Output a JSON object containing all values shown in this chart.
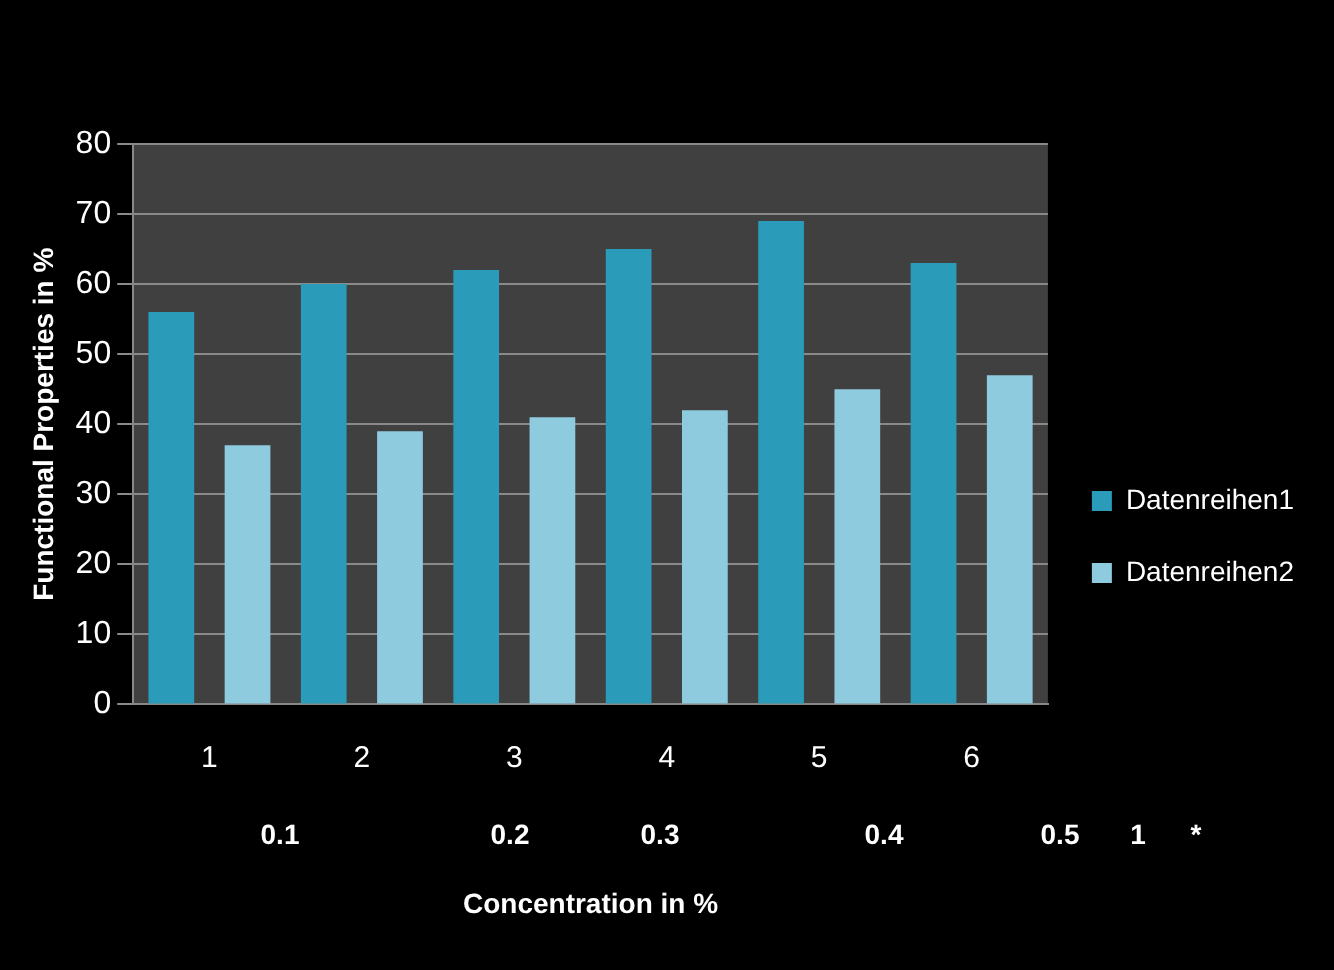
{
  "chart_data": {
    "type": "bar",
    "categories": [
      "1",
      "2",
      "3",
      "4",
      "5",
      "6"
    ],
    "series": [
      {
        "name": "Datenreihen1",
        "color": "#2a9bb8",
        "values": [
          56,
          60,
          62,
          65,
          69,
          63
        ]
      },
      {
        "name": "Datenreihen2",
        "color": "#8ecbdf",
        "values": [
          37,
          39,
          41,
          42,
          45,
          47
        ]
      }
    ],
    "xlabel": "Concentration in %",
    "ylabel": "Functional Properties in %",
    "annotations": [
      "0.1",
      "0.2",
      "0.3",
      "0.4",
      "0.5",
      "1",
      "*"
    ],
    "ylim": [
      0,
      80
    ],
    "yticks": [
      0,
      10,
      20,
      30,
      40,
      50,
      60,
      70,
      80
    ],
    "grid": "y",
    "legend": "right"
  }
}
